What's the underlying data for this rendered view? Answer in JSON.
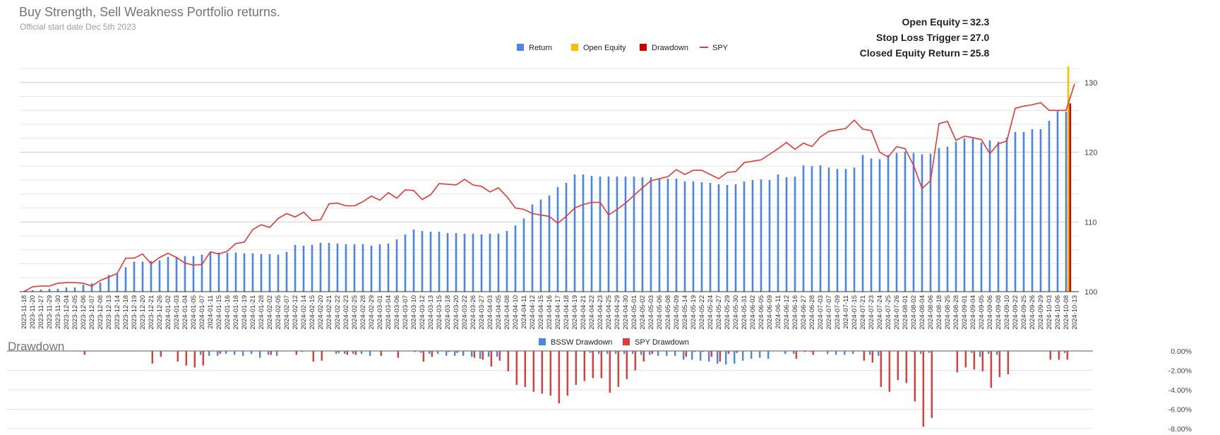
{
  "header": {
    "title": "Buy Strength, Sell Weakness Portfolio returns.",
    "subtitle": "Official start date Dec 5th 2023"
  },
  "stats": [
    {
      "label": "Open Equity",
      "value": "32.3"
    },
    {
      "label": "Stop Loss Trigger",
      "value": "27.0"
    },
    {
      "label": "Closed Equity Return",
      "value": "25.8"
    }
  ],
  "section_title": "Drawdown",
  "colors": {
    "return": "#4a86e8",
    "open_equity": "#fbbc04",
    "drawdown": "#cc0000",
    "spy": "#e53935",
    "bssw_drawdown": "#4a86e8",
    "spy_drawdown": "#e53935",
    "grid": "#d9d9d9"
  },
  "chart_data": [
    {
      "type": "bar",
      "legend": [
        "Return",
        "Open Equity",
        "Drawdown",
        "SPY"
      ],
      "legend_position": "top",
      "ylim": [
        100,
        132
      ],
      "y_ticks": [
        100,
        110,
        120,
        130
      ],
      "y_axis_side": "right",
      "grid": true,
      "x_tick_labels": [
        "2023-11-18",
        "2023-11-20",
        "2023-11-27",
        "2023-11-29",
        "2023-11-30",
        "2023-12-04",
        "2023-12-05",
        "2023-12-06",
        "2023-12-07",
        "2023-12-08",
        "2023-12-13",
        "2023-12-14",
        "2023-12-18",
        "2023-12-19",
        "2023-12-20",
        "2023-12-21",
        "2023-12-26",
        "2024-01-02",
        "2024-01-03",
        "2024-01-04",
        "2024-01-05",
        "2024-01-07",
        "2024-01-11",
        "2024-01-15",
        "2024-01-16",
        "2024-01-18",
        "2024-01-19",
        "2024-01-21",
        "2024-01-28",
        "2024-02-02",
        "2024-02-05",
        "2024-02-07",
        "2024-02-12",
        "2024-02-14",
        "2024-02-15",
        "2024-02-20",
        "2024-02-21",
        "2024-02-22",
        "2024-02-23",
        "2024-02-25",
        "2024-02-28",
        "2024-02-29",
        "2024-03-01",
        "2024-03-04",
        "2024-03-06",
        "2024-03-07",
        "2024-03-10",
        "2024-03-12",
        "2024-03-13",
        "2024-03-15",
        "2024-03-18",
        "2024-03-20",
        "2024-03-22",
        "2024-03-26",
        "2024-03-27",
        "2024-04-03",
        "2024-04-05",
        "2024-04-08",
        "2024-04-10",
        "2024-04-11",
        "2024-04-12",
        "2024-04-15",
        "2024-04-16",
        "2024-04-17",
        "2024-04-18",
        "2024-04-19",
        "2024-04-21",
        "2024-04-22",
        "2024-04-23",
        "2024-04-25",
        "2024-04-29",
        "2024-04-30",
        "2024-05-01",
        "2024-05-02",
        "2024-05-03",
        "2024-05-06",
        "2024-05-08",
        "2024-05-09",
        "2024-05-14",
        "2024-05-19",
        "2024-05-22",
        "2024-05-24",
        "2024-05-27",
        "2024-05-29",
        "2024-05-30",
        "2024-05-31",
        "2024-06-02",
        "2024-06-05",
        "2024-06-09",
        "2024-06-11",
        "2024-06-12",
        "2024-06-16",
        "2024-06-27",
        "2024-06-28",
        "2024-07-03",
        "2024-07-07",
        "2024-07-09",
        "2024-07-11",
        "2024-07-15",
        "2024-07-21",
        "2024-07-23",
        "2024-07-24",
        "2024-07-25",
        "2024-07-26",
        "2024-08-01",
        "2024-08-02",
        "2024-08-04",
        "2024-08-06",
        "2024-08-18",
        "2024-08-25",
        "2024-08-28",
        "2024-09-01",
        "2024-09-04",
        "2024-09-05",
        "2024-09-06",
        "2024-09-08",
        "2024-09-10",
        "2024-09-22",
        "2024-09-25",
        "2024-09-26",
        "2024-09-29",
        "2024-10-03",
        "2024-10-06",
        "2024-10-08",
        "2024-10-13"
      ],
      "series": [
        {
          "name": "Return",
          "values": [
            100.0,
            100.2,
            100.3,
            100.4,
            100.4,
            100.6,
            100.6,
            101.0,
            101.2,
            101.3,
            102.4,
            102.6,
            103.5,
            104.3,
            104.3,
            104.4,
            104.5,
            105.0,
            105.0,
            105.1,
            105.1,
            105.3,
            105.6,
            105.6,
            105.6,
            105.6,
            105.5,
            105.5,
            105.4,
            105.4,
            105.3,
            105.7,
            106.7,
            106.6,
            106.7,
            107.0,
            107.0,
            106.9,
            106.8,
            106.8,
            106.8,
            106.6,
            106.8,
            106.9,
            107.5,
            108.2,
            108.9,
            108.7,
            108.6,
            108.6,
            108.4,
            108.4,
            108.3,
            108.3,
            108.2,
            108.3,
            108.3,
            108.7,
            109.5,
            110.5,
            112.5,
            113.2,
            113.8,
            115.0,
            115.6,
            116.8,
            116.8,
            116.6,
            116.5,
            116.5,
            116.5,
            116.5,
            116.5,
            116.4,
            116.4,
            116.2,
            116.2,
            116.2,
            115.8,
            115.8,
            115.7,
            115.6,
            115.4,
            115.3,
            115.4,
            115.8,
            116.0,
            116.1,
            116.0,
            116.8,
            116.4,
            116.5,
            118.1,
            118.0,
            118.1,
            117.8,
            117.6,
            117.6,
            117.8,
            119.6,
            119.1,
            119.0,
            119.6,
            119.9,
            120.1,
            119.9,
            119.7,
            119.8,
            120.6,
            120.8,
            121.5,
            122.0,
            122.0,
            121.4,
            121.7,
            121.5,
            122.1,
            122.9,
            122.9,
            123.3,
            123.3,
            124.5,
            125.9,
            125.8
          ],
          "color": "return"
        },
        {
          "name": "SPY",
          "values": [
            100.0,
            100.7,
            100.8,
            100.8,
            101.2,
            101.3,
            101.3,
            101.2,
            100.8,
            101.6,
            102.1,
            102.6,
            104.8,
            104.8,
            105.4,
            104.0,
            104.9,
            105.5,
            104.9,
            104.1,
            103.8,
            103.9,
            105.7,
            105.4,
            105.8,
            106.9,
            107.1,
            108.9,
            109.6,
            109.2,
            110.5,
            111.2,
            110.7,
            111.4,
            110.2,
            110.3,
            112.6,
            112.7,
            112.3,
            112.3,
            112.9,
            113.7,
            113.1,
            114.2,
            113.4,
            114.6,
            114.5,
            113.2,
            113.9,
            115.5,
            115.4,
            115.3,
            116.1,
            115.3,
            115.1,
            114.3,
            114.9,
            113.6,
            112.0,
            111.8,
            111.2,
            111.0,
            110.8,
            109.8,
            110.8,
            112.0,
            112.5,
            112.8,
            112.8,
            111.0,
            111.8,
            112.7,
            113.8,
            114.9,
            115.9,
            116.2,
            116.5,
            117.5,
            116.8,
            117.4,
            117.4,
            116.8,
            116.2,
            117.1,
            117.2,
            118.5,
            118.7,
            118.9,
            119.7,
            120.5,
            121.4,
            120.4,
            121.3,
            120.8,
            122.2,
            123.0,
            123.2,
            123.4,
            124.6,
            123.3,
            123.1,
            120.0,
            119.3,
            120.8,
            120.5,
            118.1,
            114.8,
            115.9,
            124.1,
            124.4,
            121.7,
            122.3,
            122.1,
            121.8,
            119.8,
            121.2,
            121.6,
            126.3,
            126.6,
            126.8,
            127.1,
            126.0,
            126.0,
            126.0,
            129.8
          ],
          "color": "spy"
        },
        {
          "name": "Open Equity",
          "values": [
            null,
            null,
            null,
            null,
            null,
            null,
            null,
            null,
            null,
            null,
            null,
            null,
            null,
            null,
            null,
            null,
            null,
            null,
            null,
            null,
            null,
            null,
            null,
            null,
            null,
            null,
            null,
            null,
            null,
            null,
            null,
            null,
            null,
            null,
            null,
            null,
            null,
            null,
            null,
            null,
            null,
            null,
            null,
            null,
            null,
            null,
            null,
            null,
            null,
            null,
            null,
            null,
            null,
            null,
            null,
            null,
            null,
            null,
            null,
            null,
            null,
            null,
            null,
            null,
            null,
            null,
            null,
            null,
            null,
            null,
            null,
            null,
            null,
            null,
            null,
            null,
            null,
            null,
            null,
            null,
            null,
            null,
            null,
            null,
            null,
            null,
            null,
            null,
            null,
            null,
            null,
            null,
            null,
            null,
            null,
            null,
            null,
            null,
            null,
            null,
            null,
            null,
            null,
            null,
            null,
            null,
            null,
            null,
            null,
            null,
            null,
            null,
            null,
            null,
            null,
            null,
            null,
            null,
            null,
            null,
            null,
            null,
            null,
            132.3
          ],
          "color": "open_equity"
        },
        {
          "name": "Drawdown",
          "values": [
            null,
            null,
            null,
            null,
            null,
            null,
            null,
            null,
            null,
            null,
            null,
            null,
            null,
            null,
            null,
            null,
            null,
            null,
            null,
            null,
            null,
            null,
            null,
            null,
            null,
            null,
            null,
            null,
            null,
            null,
            null,
            null,
            null,
            null,
            null,
            null,
            null,
            null,
            null,
            null,
            null,
            null,
            null,
            null,
            null,
            null,
            null,
            null,
            null,
            null,
            null,
            null,
            null,
            null,
            null,
            null,
            null,
            null,
            null,
            null,
            null,
            null,
            null,
            null,
            null,
            null,
            null,
            null,
            null,
            null,
            null,
            null,
            null,
            null,
            null,
            null,
            null,
            null,
            null,
            null,
            null,
            null,
            null,
            null,
            null,
            null,
            null,
            null,
            null,
            null,
            null,
            null,
            null,
            null,
            null,
            null,
            null,
            null,
            null,
            null,
            null,
            null,
            null,
            null,
            null,
            null,
            null,
            null,
            null,
            null,
            null,
            null,
            null,
            null,
            null,
            null,
            null,
            null,
            null,
            null,
            null,
            null,
            null,
            127.0
          ],
          "color": "drawdown"
        }
      ]
    },
    {
      "type": "bar",
      "legend": [
        "BSSW Drawdown",
        "SPY Drawdown"
      ],
      "legend_position": "top",
      "ylim": [
        -8,
        0
      ],
      "y_tick_labels": [
        "0.00%",
        "-2.00%",
        "-4.00%",
        "-6.00%",
        "-8.00%"
      ],
      "y_ticks": [
        0,
        -2,
        -4,
        -6,
        -8
      ],
      "y_axis_side": "right",
      "grid": true,
      "series": [
        {
          "name": "BSSW Drawdown",
          "values": [
            0,
            0,
            0,
            0,
            0,
            0,
            0,
            0,
            0,
            0,
            0,
            0,
            0,
            0,
            0,
            0,
            0,
            0,
            0,
            0,
            0,
            -0.4,
            -0.5,
            -0.5,
            -0.3,
            -0.4,
            -0.5,
            -0.3,
            -0.7,
            -0.4,
            -0.5,
            0,
            0,
            -0.1,
            0,
            0,
            0,
            -0.3,
            -0.3,
            -0.3,
            -0.3,
            -0.5,
            0,
            0,
            0,
            0,
            0,
            -0.2,
            -0.3,
            -0.3,
            -0.5,
            -0.5,
            -0.5,
            -0.6,
            -0.8,
            -0.6,
            -0.6,
            0,
            0,
            0,
            0,
            0,
            0,
            0,
            0,
            0,
            0,
            -0.2,
            -0.3,
            -0.3,
            -0.3,
            -0.3,
            -0.3,
            -0.4,
            -0.4,
            -0.5,
            -0.5,
            -0.5,
            -0.9,
            -0.9,
            -1.0,
            -1.1,
            -1.3,
            -1.4,
            -1.3,
            -1.0,
            -0.8,
            -0.7,
            -0.8,
            0,
            -0.3,
            -0.3,
            0,
            -0.1,
            0,
            -0.3,
            -0.4,
            -0.4,
            -0.3,
            0,
            -0.4,
            -0.5,
            0,
            0,
            0,
            -0.1,
            -0.3,
            -0.2,
            0,
            0,
            0,
            0,
            -0.2,
            -0.6,
            -0.3,
            -0.4,
            0,
            0,
            0,
            0,
            0,
            0,
            0,
            -0.2
          ],
          "color": "bssw_drawdown"
        },
        {
          "name": "SPY Drawdown",
          "values": [
            0,
            0,
            0,
            0,
            0,
            0,
            0,
            -0.4,
            0,
            0,
            0,
            0,
            0,
            0,
            0,
            -1.3,
            -0.6,
            0,
            -1.1,
            -1.5,
            -1.7,
            -1.5,
            0,
            -0.3,
            0,
            0,
            0,
            0,
            0,
            -0.4,
            0,
            0,
            -0.4,
            0,
            -1.1,
            -1.0,
            0,
            -0.2,
            -0.4,
            -0.4,
            0,
            0,
            -0.5,
            0,
            -0.7,
            0,
            -0.1,
            -1.1,
            -0.6,
            0,
            -0.1,
            -0.2,
            0,
            -0.7,
            -0.9,
            -1.6,
            -1.0,
            -2.1,
            -3.5,
            -3.7,
            -4.2,
            -4.4,
            -4.6,
            -5.4,
            -4.6,
            -3.5,
            -3.1,
            -2.8,
            -2.8,
            -4.3,
            -3.7,
            -2.9,
            -2.0,
            -1.1,
            -0.3,
            0,
            0,
            0,
            -0.6,
            -0.1,
            -0.1,
            -0.6,
            -1.1,
            -0.3,
            -0.2,
            0,
            0,
            0,
            0,
            0,
            0,
            -0.8,
            -0.1,
            -0.4,
            0,
            0,
            0,
            0,
            0,
            -1.0,
            -1.2,
            -3.7,
            -4.2,
            -3.0,
            -3.3,
            -5.2,
            -7.8,
            -6.9,
            0,
            0,
            -2.2,
            -1.7,
            -1.9,
            -2.1,
            -3.8,
            -2.7,
            -2.4,
            0,
            0,
            0,
            0,
            -0.9,
            -0.9,
            -0.9,
            0
          ],
          "color": "spy_drawdown"
        }
      ]
    }
  ]
}
